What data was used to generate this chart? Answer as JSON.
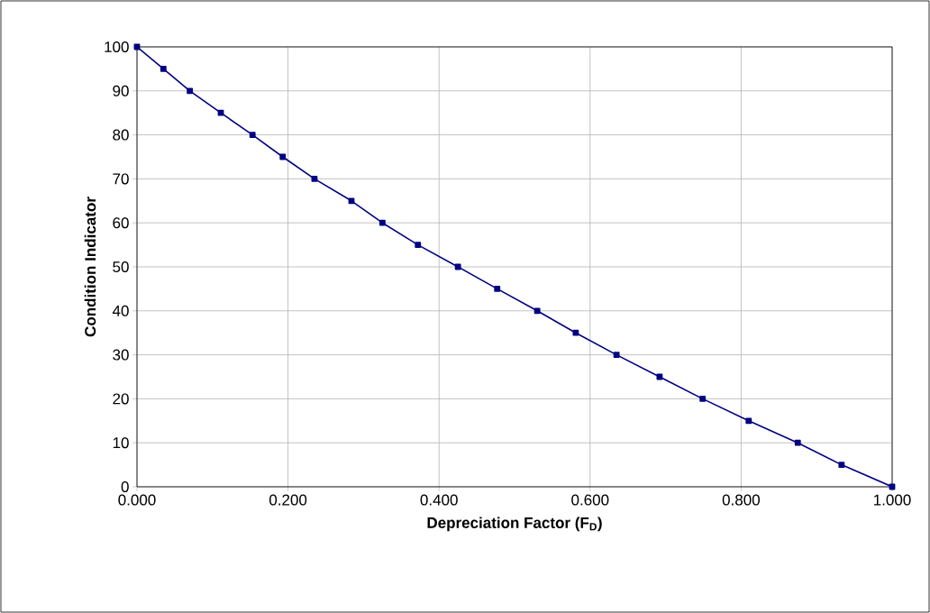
{
  "chart_data": {
    "type": "line",
    "xlabel": "Depreciation Factor (F$_{D}$)",
    "ylabel": "Condition Indicator",
    "x": [
      0.0,
      0.035,
      0.07,
      0.111,
      0.153,
      0.193,
      0.235,
      0.284,
      0.325,
      0.372,
      0.425,
      0.477,
      0.53,
      0.581,
      0.635,
      0.692,
      0.749,
      0.81,
      0.875,
      0.933,
      1.0
    ],
    "series": [
      {
        "color": "#000080",
        "values": [
          100,
          95,
          90,
          85,
          80,
          75,
          70,
          65,
          60,
          55,
          50,
          45,
          40,
          35,
          30,
          25,
          20,
          15,
          10,
          5,
          0
        ]
      }
    ],
    "xlim": [
      0,
      1
    ],
    "ylim": [
      0,
      100
    ],
    "xticks": [
      {
        "value": 0,
        "label": "0.000"
      },
      {
        "value": 0.2,
        "label": "0.200"
      },
      {
        "value": 0.4,
        "label": "0.400"
      },
      {
        "value": 0.6,
        "label": "0.600"
      },
      {
        "value": 0.8,
        "label": "0.800"
      },
      {
        "value": 1,
        "label": "1.000"
      }
    ],
    "yticks": [
      0,
      10,
      20,
      30,
      40,
      50,
      60,
      70,
      80,
      90,
      100
    ],
    "grid": true,
    "marker": "square",
    "line_style": "solid"
  }
}
